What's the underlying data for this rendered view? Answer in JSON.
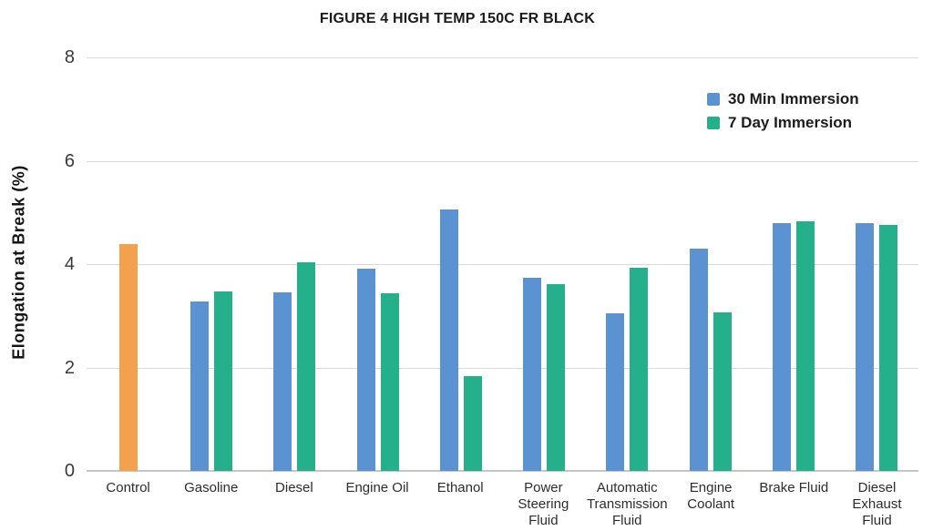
{
  "chart_data": {
    "type": "bar",
    "title": "FIGURE 4 HIGH TEMP 150C FR BLACK",
    "xlabel": "",
    "ylabel": "Elongation at Break (%)",
    "ylim": [
      0,
      8
    ],
    "yticks": [
      0,
      2,
      4,
      6,
      8
    ],
    "grid": "horizontal",
    "legend_position": "top-right",
    "categories": [
      "Control",
      "Gasoline",
      "Diesel",
      "Engine Oil",
      "Ethanol",
      "Power Steering Fluid",
      "Automatic Transmission Fluid",
      "Engine Coolant",
      "Brake Fluid",
      "Diesel Exhaust Fluid"
    ],
    "series": [
      {
        "name": "Control",
        "color": "#f3a14c",
        "in_legend": false,
        "values": [
          4.38,
          null,
          null,
          null,
          null,
          null,
          null,
          null,
          null,
          null
        ]
      },
      {
        "name": "30 Min Immersion",
        "color": "#5b93d2",
        "in_legend": true,
        "values": [
          null,
          3.27,
          3.45,
          3.91,
          5.05,
          3.73,
          3.05,
          4.3,
          4.8,
          4.8
        ]
      },
      {
        "name": "7 Day Immersion",
        "color": "#24b08b",
        "in_legend": true,
        "values": [
          null,
          3.48,
          4.03,
          3.43,
          1.83,
          3.62,
          3.93,
          3.07,
          4.83,
          4.75
        ]
      }
    ]
  }
}
